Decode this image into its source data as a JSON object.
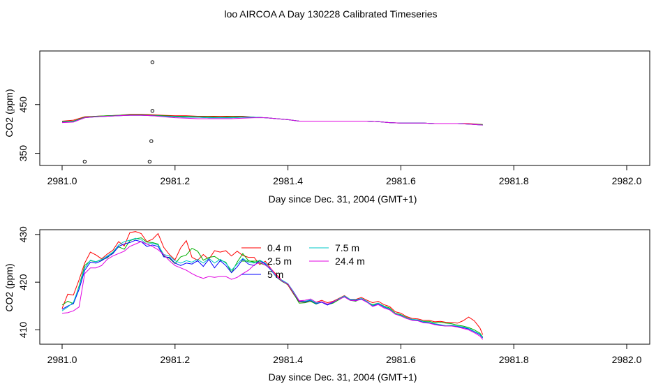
{
  "title": "loo AIRCOA A  Day 130228  Calibrated Timeseries",
  "colors": {
    "0.4 m": "#ff0000",
    "2.5 m": "#00b000",
    "5 m": "#0000ff",
    "7.5 m": "#00c8c8",
    "24.4 m": "#e000e0"
  },
  "chart_data": [
    {
      "type": "line",
      "xlabel": "Day since Dec. 31, 2004 (GMT+1)",
      "ylabel": "CO2 (ppm)",
      "xlim": [
        2981.0,
        2982.0
      ],
      "ylim": [
        325,
        560
      ],
      "xticks": [
        "2981.0",
        "2981.2",
        "2981.4",
        "2981.6",
        "2981.8",
        "2982.0"
      ],
      "yticks": [
        "350",
        "450"
      ],
      "x": [
        2981.0,
        2981.02,
        2981.04,
        2981.06,
        2981.08,
        2981.1,
        2981.12,
        2981.14,
        2981.16,
        2981.18,
        2981.2,
        2981.22,
        2981.24,
        2981.26,
        2981.28,
        2981.3,
        2981.32,
        2981.34,
        2981.36,
        2981.38,
        2981.4,
        2981.42,
        2981.44,
        2981.46,
        2981.48,
        2981.5,
        2981.52,
        2981.54,
        2981.56,
        2981.58,
        2981.6,
        2981.62,
        2981.64,
        2981.66,
        2981.68,
        2981.7,
        2981.72,
        2981.745
      ],
      "series": [
        {
          "name": "0.4 m",
          "values": [
            416,
            418,
            425,
            426,
            427,
            428,
            430,
            430,
            429,
            428,
            427,
            427,
            426,
            426,
            426,
            426,
            426,
            424,
            423,
            421,
            419,
            416,
            416,
            416,
            416,
            416,
            416,
            416,
            415,
            413,
            412,
            412,
            412,
            411,
            411,
            411,
            411,
            409
          ]
        },
        {
          "name": "2.5 m",
          "values": [
            415,
            416,
            424,
            426,
            427,
            428,
            429,
            429,
            428,
            427,
            426,
            426,
            425,
            425,
            424,
            425,
            425,
            424,
            423,
            421,
            419,
            416,
            416,
            416,
            416,
            416,
            416,
            416,
            415,
            413,
            412,
            412,
            412,
            411,
            411,
            411,
            410,
            409
          ]
        },
        {
          "name": "5 m",
          "values": [
            414,
            415,
            423,
            425,
            426,
            427,
            428,
            428,
            427,
            426,
            425,
            424,
            424,
            423,
            423,
            423,
            424,
            424,
            423,
            421,
            419,
            416,
            416,
            416,
            416,
            416,
            416,
            416,
            415,
            413,
            412,
            412,
            412,
            411,
            411,
            411,
            410,
            408
          ]
        },
        {
          "name": "7.5 m",
          "values": [
            414,
            415,
            423,
            425,
            426,
            427,
            428,
            428,
            427,
            426,
            425,
            424,
            424,
            423,
            423,
            423,
            424,
            424,
            423,
            421,
            419,
            416,
            416,
            416,
            416,
            416,
            416,
            416,
            415,
            413,
            412,
            412,
            412,
            411,
            411,
            411,
            410,
            408
          ]
        },
        {
          "name": "24.4 m",
          "values": [
            413,
            414,
            423,
            425,
            426,
            427,
            428,
            428,
            427,
            425,
            423,
            422,
            421,
            421,
            421,
            421,
            422,
            423,
            423,
            421,
            419,
            416,
            416,
            416,
            416,
            416,
            416,
            416,
            415,
            413,
            412,
            412,
            412,
            411,
            411,
            411,
            410,
            408
          ]
        }
      ],
      "outliers": [
        {
          "x": 2981.04,
          "y": 333
        },
        {
          "x": 2981.155,
          "y": 333
        },
        {
          "x": 2981.158,
          "y": 375
        },
        {
          "x": 2981.16,
          "y": 437
        },
        {
          "x": 2981.16,
          "y": 537
        }
      ]
    },
    {
      "type": "line",
      "xlabel": "Day since Dec. 31, 2004 (GMT+1)",
      "ylabel": "CO2 (ppm)",
      "xlim": [
        2981.0,
        2982.0
      ],
      "ylim": [
        407,
        431
      ],
      "xticks": [
        "2981.0",
        "2981.2",
        "2981.4",
        "2981.6",
        "2981.8",
        "2982.0"
      ],
      "yticks": [
        "410",
        "420",
        "430"
      ],
      "legend_position": "top-center",
      "x": [
        2981.0,
        2981.01,
        2981.02,
        2981.03,
        2981.04,
        2981.05,
        2981.06,
        2981.07,
        2981.08,
        2981.09,
        2981.1,
        2981.11,
        2981.12,
        2981.13,
        2981.14,
        2981.15,
        2981.16,
        2981.17,
        2981.18,
        2981.19,
        2981.2,
        2981.21,
        2981.22,
        2981.23,
        2981.24,
        2981.25,
        2981.26,
        2981.27,
        2981.28,
        2981.29,
        2981.3,
        2981.31,
        2981.32,
        2981.33,
        2981.34,
        2981.35,
        2981.36,
        2981.37,
        2981.38,
        2981.39,
        2981.4,
        2981.41,
        2981.42,
        2981.43,
        2981.44,
        2981.45,
        2981.46,
        2981.47,
        2981.48,
        2981.49,
        2981.5,
        2981.51,
        2981.52,
        2981.53,
        2981.54,
        2981.55,
        2981.56,
        2981.57,
        2981.58,
        2981.59,
        2981.6,
        2981.61,
        2981.62,
        2981.63,
        2981.64,
        2981.65,
        2981.66,
        2981.67,
        2981.68,
        2981.69,
        2981.7,
        2981.71,
        2981.72,
        2981.73,
        2981.74,
        2981.745
      ],
      "series": [
        {
          "name": "0.4 m",
          "values": [
            414.5,
            417.5,
            417.3,
            420.5,
            424.0,
            426.3,
            425.7,
            424.9,
            425.9,
            426.7,
            428.5,
            427.6,
            430.4,
            430.6,
            430.2,
            428.5,
            429.0,
            430.2,
            427.3,
            425.8,
            424.7,
            427.2,
            428.7,
            425.2,
            424.6,
            425.8,
            424.8,
            426.6,
            426.3,
            426.6,
            425.5,
            426.5,
            425.6,
            425.2,
            425.2,
            423.7,
            424.4,
            422.8,
            421.5,
            420.3,
            419.4,
            417.5,
            415.9,
            415.8,
            416.0,
            415.8,
            416.2,
            415.7,
            416.0,
            416.6,
            417.2,
            416.4,
            416.4,
            416.8,
            416.2,
            415.7,
            416.0,
            415.3,
            414.9,
            413.8,
            413.5,
            412.8,
            412.4,
            412.3,
            412.0,
            412.0,
            411.7,
            411.8,
            411.6,
            411.6,
            411.4,
            411.9,
            412.7,
            411.9,
            410.4,
            409.0
          ]
        },
        {
          "name": "2.5 m",
          "values": [
            415.2,
            416.0,
            415.5,
            419.2,
            423.5,
            424.5,
            424.3,
            424.7,
            425.1,
            426.2,
            427.4,
            426.9,
            428.7,
            429.1,
            429.3,
            428.4,
            428.3,
            428.0,
            425.5,
            425.0,
            423.9,
            425.3,
            425.7,
            427.1,
            426.5,
            424.6,
            425.2,
            425.4,
            424.6,
            424.2,
            422.0,
            424.2,
            426.0,
            424.5,
            424.2,
            424.0,
            423.6,
            422.7,
            421.0,
            420.1,
            419.5,
            417.6,
            415.6,
            415.7,
            416.0,
            415.4,
            415.9,
            415.3,
            415.6,
            416.3,
            417.0,
            416.2,
            416.0,
            416.6,
            415.8,
            415.3,
            415.6,
            415.0,
            414.6,
            413.5,
            413.2,
            412.6,
            412.2,
            412.1,
            411.8,
            411.8,
            411.5,
            411.6,
            411.4,
            411.3,
            411.0,
            410.8,
            410.5,
            410.0,
            409.3,
            408.5
          ]
        },
        {
          "name": "5 m",
          "values": [
            414.3,
            415.0,
            415.5,
            418.5,
            422.5,
            424.2,
            424.0,
            424.5,
            425.3,
            426.0,
            427.5,
            428.0,
            428.3,
            428.8,
            428.5,
            427.5,
            427.8,
            427.5,
            425.3,
            425.2,
            424.0,
            423.5,
            424.0,
            423.8,
            424.5,
            423.3,
            424.8,
            423.0,
            424.5,
            423.5,
            422.0,
            423.2,
            424.8,
            423.8,
            423.5,
            424.5,
            423.8,
            422.5,
            421.0,
            420.3,
            419.6,
            417.8,
            416.0,
            415.9,
            416.2,
            415.5,
            415.8,
            415.2,
            415.8,
            416.5,
            417.0,
            416.3,
            416.2,
            416.5,
            415.9,
            415.0,
            415.5,
            414.8,
            414.3,
            413.3,
            413.0,
            412.4,
            412.1,
            412.0,
            411.6,
            411.5,
            411.2,
            411.0,
            410.8,
            410.9,
            410.7,
            410.5,
            410.2,
            409.6,
            409.0,
            408.3
          ]
        },
        {
          "name": "7.5 m",
          "values": [
            414.0,
            414.8,
            415.8,
            419.0,
            423.0,
            424.6,
            424.3,
            424.8,
            425.5,
            426.3,
            427.8,
            428.5,
            428.8,
            429.2,
            428.9,
            428.0,
            428.2,
            427.8,
            425.8,
            425.5,
            424.5,
            424.0,
            424.5,
            424.2,
            424.8,
            424.0,
            425.0,
            424.0,
            424.8,
            424.0,
            422.5,
            423.8,
            425.0,
            424.2,
            424.0,
            424.6,
            424.0,
            422.6,
            421.0,
            420.4,
            419.7,
            418.0,
            416.1,
            416.0,
            416.3,
            415.6,
            415.9,
            415.4,
            415.9,
            416.5,
            417.1,
            416.4,
            416.3,
            416.6,
            416.0,
            415.1,
            415.6,
            414.9,
            414.4,
            413.4,
            413.1,
            412.5,
            412.2,
            412.1,
            411.7,
            411.6,
            411.3,
            411.1,
            410.9,
            411.0,
            410.8,
            410.6,
            410.3,
            409.7,
            409.1,
            408.4
          ]
        },
        {
          "name": "24.4 m",
          "values": [
            413.5,
            413.6,
            414.0,
            414.8,
            421.8,
            423.0,
            423.0,
            423.5,
            424.8,
            425.5,
            426.0,
            426.5,
            427.5,
            428.0,
            428.5,
            428.0,
            427.5,
            426.8,
            425.8,
            424.5,
            423.5,
            423.0,
            422.5,
            421.8,
            421.2,
            420.8,
            421.2,
            421.0,
            421.2,
            421.2,
            420.6,
            421.0,
            421.8,
            422.5,
            423.6,
            424.2,
            423.6,
            422.8,
            421.2,
            420.2,
            419.6,
            417.8,
            416.1,
            416.2,
            416.5,
            415.8,
            415.9,
            415.4,
            415.9,
            416.4,
            416.9,
            416.2,
            416.1,
            416.4,
            415.8,
            414.9,
            415.3,
            414.6,
            414.2,
            413.3,
            412.9,
            412.4,
            412.0,
            411.9,
            411.5,
            411.4,
            411.1,
            410.9,
            410.8,
            410.8,
            410.6,
            410.3,
            410.0,
            409.4,
            408.7,
            408.0
          ]
        }
      ]
    }
  ]
}
